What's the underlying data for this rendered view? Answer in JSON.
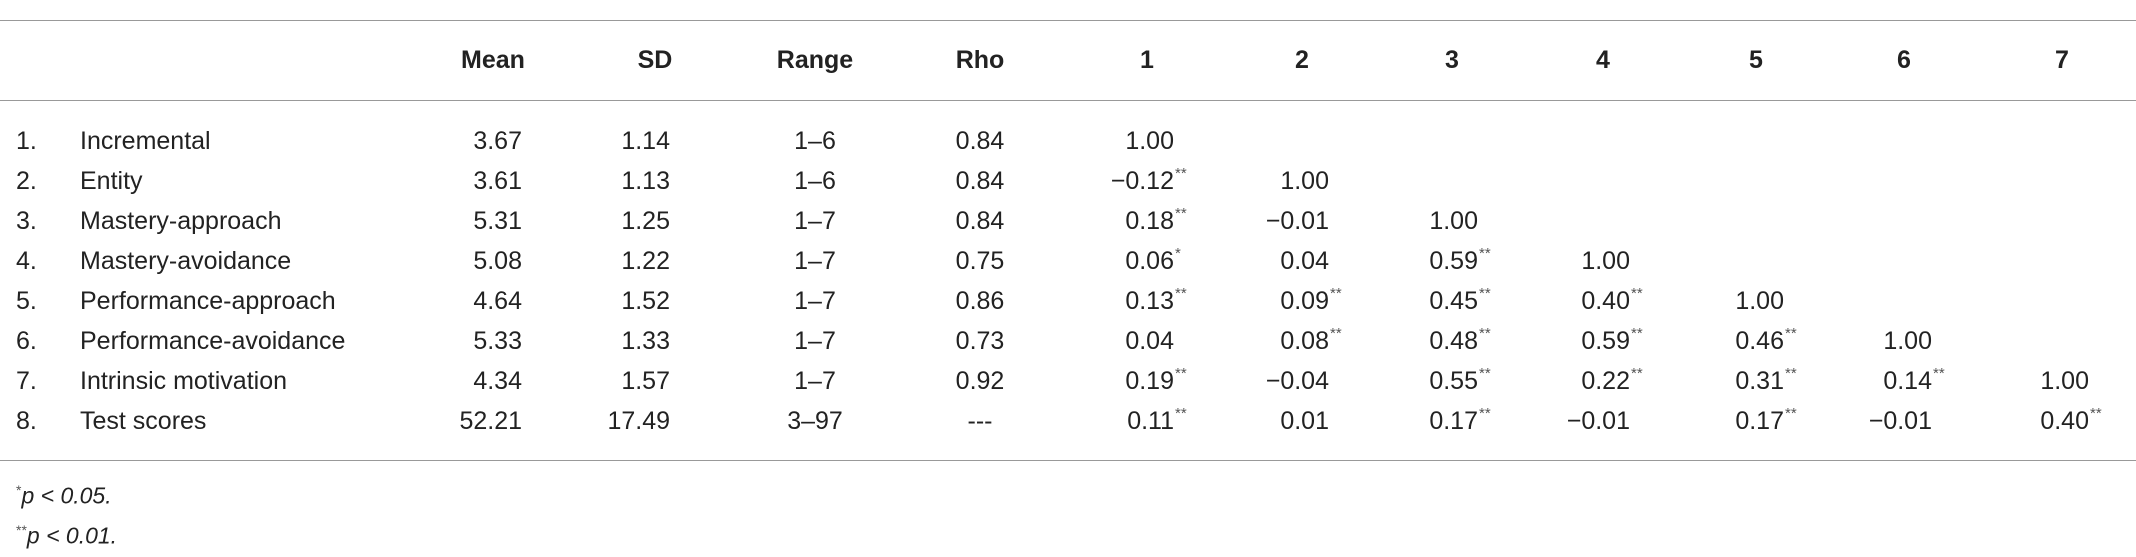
{
  "table": {
    "header": [
      "Mean",
      "SD",
      "Range",
      "Rho",
      "1",
      "2",
      "3",
      "4",
      "5",
      "6",
      "7"
    ],
    "rows": [
      {
        "number": "1.",
        "label": "Incremental",
        "mean": "3.67",
        "sd": "1.14",
        "range": "1–6",
        "rho": "0.84",
        "correlations": [
          {
            "value": "1.00"
          }
        ]
      },
      {
        "number": "2.",
        "label": "Entity",
        "mean": "3.61",
        "sd": "1.13",
        "range": "1–6",
        "rho": "0.84",
        "correlations": [
          {
            "value": "−0.12",
            "sig": "**"
          },
          {
            "value": "1.00"
          }
        ]
      },
      {
        "number": "3.",
        "label": "Mastery-approach",
        "mean": "5.31",
        "sd": "1.25",
        "range": "1–7",
        "rho": "0.84",
        "correlations": [
          {
            "value": "0.18",
            "sig": "**"
          },
          {
            "value": "−0.01"
          },
          {
            "value": "1.00"
          }
        ]
      },
      {
        "number": "4.",
        "label": "Mastery-avoidance",
        "mean": "5.08",
        "sd": "1.22",
        "range": "1–7",
        "rho": "0.75",
        "correlations": [
          {
            "value": "0.06",
            "sig": "*"
          },
          {
            "value": "0.04"
          },
          {
            "value": "0.59",
            "sig": "**"
          },
          {
            "value": "1.00"
          }
        ]
      },
      {
        "number": "5.",
        "label": "Performance-approach",
        "mean": "4.64",
        "sd": "1.52",
        "range": "1–7",
        "rho": "0.86",
        "correlations": [
          {
            "value": "0.13",
            "sig": "**"
          },
          {
            "value": "0.09",
            "sig": "**"
          },
          {
            "value": "0.45",
            "sig": "**"
          },
          {
            "value": "0.40",
            "sig": "**"
          },
          {
            "value": "1.00"
          }
        ]
      },
      {
        "number": "6.",
        "label": "Performance-avoidance",
        "mean": "5.33",
        "sd": "1.33",
        "range": "1–7",
        "rho": "0.73",
        "correlations": [
          {
            "value": "0.04"
          },
          {
            "value": "0.08",
            "sig": "**"
          },
          {
            "value": "0.48",
            "sig": "**"
          },
          {
            "value": "0.59",
            "sig": "**"
          },
          {
            "value": "0.46",
            "sig": "**"
          },
          {
            "value": "1.00"
          }
        ]
      },
      {
        "number": "7.",
        "label": "Intrinsic motivation",
        "mean": "4.34",
        "sd": "1.57",
        "range": "1–7",
        "rho": "0.92",
        "correlations": [
          {
            "value": "0.19",
            "sig": "**"
          },
          {
            "value": "−0.04"
          },
          {
            "value": "0.55",
            "sig": "**"
          },
          {
            "value": "0.22",
            "sig": "**"
          },
          {
            "value": "0.31",
            "sig": "**"
          },
          {
            "value": "0.14",
            "sig": "**"
          },
          {
            "value": "1.00"
          }
        ]
      },
      {
        "number": "8.",
        "label": "Test scores",
        "mean": "52.21",
        "sd": "17.49",
        "range": "3–97",
        "rho": "---",
        "correlations": [
          {
            "value": "0.11",
            "sig": "**"
          },
          {
            "value": "0.01"
          },
          {
            "value": "0.17",
            "sig": "**"
          },
          {
            "value": "−0.01"
          },
          {
            "value": "0.17",
            "sig": "**"
          },
          {
            "value": "−0.01"
          },
          {
            "value": "0.40",
            "sig": "**"
          }
        ]
      }
    ]
  },
  "footnotes": [
    {
      "mark": "*",
      "text": "p < 0.05."
    },
    {
      "mark": "**",
      "text": "p < 0.01."
    }
  ]
}
